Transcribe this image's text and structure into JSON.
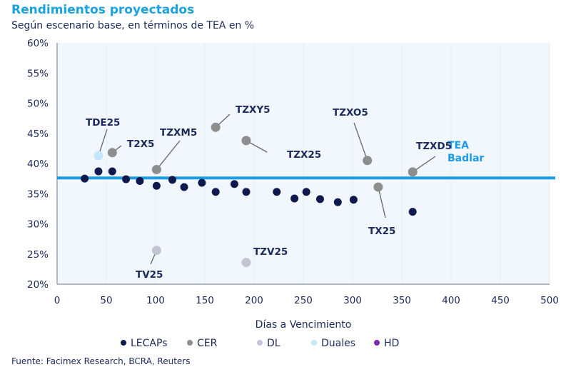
{
  "chart_data": {
    "type": "scatter",
    "title": "Rendimientos proyectados",
    "subtitle": "Según escenario base, en términos de TEA en %",
    "xlabel": "Días a Vencimiento",
    "ylabel": "",
    "xlim": [
      0,
      500
    ],
    "ylim": [
      20,
      60
    ],
    "xticks": [
      "0",
      "50",
      "100",
      "150",
      "200",
      "250",
      "300",
      "350",
      "400",
      "450",
      "500"
    ],
    "yticks": [
      "20%",
      "25%",
      "30%",
      "35%",
      "40%",
      "45%",
      "50%",
      "55%",
      "60%"
    ],
    "grid": "vertical",
    "legend": "bottom",
    "reference_line": {
      "label_line1": "TEA",
      "label_line2": "Badlar",
      "value": 37.6,
      "color": "#1a9be6"
    },
    "series": [
      {
        "name": "LECAPs",
        "color": "#0e1a4e",
        "points": [
          {
            "x": 28,
            "y": 37.5
          },
          {
            "x": 42,
            "y": 38.7
          },
          {
            "x": 56,
            "y": 38.7
          },
          {
            "x": 70,
            "y": 37.4
          },
          {
            "x": 84,
            "y": 37.1
          },
          {
            "x": 101,
            "y": 36.3
          },
          {
            "x": 117,
            "y": 37.3
          },
          {
            "x": 129,
            "y": 36.1
          },
          {
            "x": 147,
            "y": 36.8
          },
          {
            "x": 161,
            "y": 35.3
          },
          {
            "x": 180,
            "y": 36.6
          },
          {
            "x": 192,
            "y": 35.3
          },
          {
            "x": 223,
            "y": 35.3
          },
          {
            "x": 241,
            "y": 34.2
          },
          {
            "x": 253,
            "y": 35.3
          },
          {
            "x": 267,
            "y": 34.1
          },
          {
            "x": 285,
            "y": 33.6
          },
          {
            "x": 301,
            "y": 34.0
          },
          {
            "x": 361,
            "y": 32.0
          }
        ]
      },
      {
        "name": "CER",
        "color": "#8e8e8e",
        "points": [
          {
            "x": 56,
            "y": 41.8,
            "label": "T2X5"
          },
          {
            "x": 101,
            "y": 39.0,
            "label": "TZXM5"
          },
          {
            "x": 161,
            "y": 46.0,
            "label": "TZXY5"
          },
          {
            "x": 192,
            "y": 43.8,
            "label": "TZX25"
          },
          {
            "x": 315,
            "y": 40.5,
            "label": "TZXO5"
          },
          {
            "x": 326,
            "y": 36.1,
            "label": "TX25"
          },
          {
            "x": 361,
            "y": 38.6,
            "label": "TZXD5"
          }
        ]
      },
      {
        "name": "DL",
        "color": "#c2c6d2",
        "points": [
          {
            "x": 101,
            "y": 25.6,
            "label": "TV25"
          },
          {
            "x": 192,
            "y": 23.6,
            "label": "TZV25"
          }
        ]
      },
      {
        "name": "Duales",
        "color": "#c4e6f8",
        "points": [
          {
            "x": 42,
            "y": 41.3,
            "label": "TDE25"
          }
        ]
      },
      {
        "name": "HD",
        "color": "#7a2aa6",
        "points": []
      }
    ]
  },
  "source": "Fuente: Facimex Research, BCRA, Reuters"
}
